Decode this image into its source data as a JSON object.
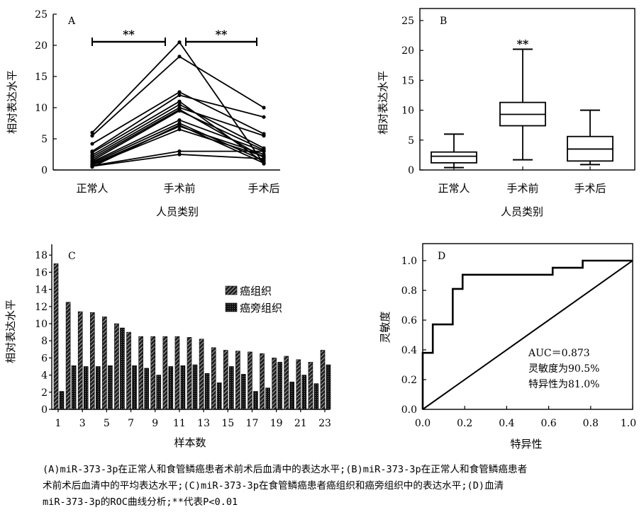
{
  "chart_data": [
    {
      "panel": "A",
      "type": "line",
      "ylabel": "相对表达水平",
      "xlabel": "人员类别",
      "categories": [
        "正常人",
        "手术前",
        "手术后"
      ],
      "y_ticks": [
        "0",
        "5",
        "10",
        "15",
        "20",
        "25"
      ],
      "ylim": [
        0,
        25
      ],
      "significance": [
        "**",
        "**"
      ],
      "normal_values": [
        6.0,
        5.5,
        4.2,
        3.0,
        2.8,
        2.4,
        2.1,
        1.8,
        1.5,
        1.3,
        1.1,
        0.9,
        0.8,
        0.7,
        0.6,
        0.5
      ],
      "pre_values": [
        20.5,
        18.2,
        12.5,
        12.0,
        11.0,
        10.5,
        10.0,
        9.7,
        9.5,
        8.0,
        7.5,
        7.0,
        6.5,
        3.0,
        2.5,
        7.2
      ],
      "post_values": [
        1.0,
        10.0,
        5.8,
        8.5,
        1.2,
        3.5,
        5.5,
        2.0,
        3.2,
        3.0,
        1.5,
        2.5,
        2.2,
        3.0,
        1.8,
        1.1
      ]
    },
    {
      "panel": "B",
      "type": "box",
      "ylabel": "相对表达水平",
      "xlabel": "人员类别",
      "categories": [
        "正常人",
        "手术前",
        "手术后"
      ],
      "y_ticks": [
        "0",
        "5",
        "10",
        "15",
        "20",
        "25"
      ],
      "ylim": [
        0,
        25
      ],
      "boxes": [
        {
          "min": 0.4,
          "q1": 1.2,
          "median": 2.3,
          "q3": 3.0,
          "max": 6.0
        },
        {
          "min": 1.7,
          "q1": 7.4,
          "median": 9.3,
          "q3": 11.3,
          "max": 20.2
        },
        {
          "min": 0.9,
          "q1": 1.5,
          "median": 3.5,
          "q3": 5.6,
          "max": 10.0
        }
      ],
      "significance": "**"
    },
    {
      "panel": "C",
      "type": "bar",
      "ylabel": "相对表达水平",
      "xlabel": "样本数",
      "categories": [
        "1",
        "2",
        "3",
        "4",
        "5",
        "6",
        "7",
        "8",
        "9",
        "10",
        "11",
        "12",
        "13",
        "14",
        "15",
        "16",
        "17",
        "18",
        "19",
        "20",
        "21",
        "22",
        "23"
      ],
      "x_ticks": [
        "1",
        "3",
        "5",
        "7",
        "9",
        "11",
        "13",
        "15",
        "17",
        "19",
        "21",
        "23"
      ],
      "y_ticks": [
        "0",
        "2",
        "4",
        "6",
        "8",
        "10",
        "12",
        "14",
        "16",
        "18"
      ],
      "ylim": [
        0,
        18
      ],
      "series": [
        {
          "name": "癌组织",
          "values": [
            17.0,
            12.5,
            11.4,
            11.3,
            10.8,
            10.0,
            9.0,
            8.5,
            8.5,
            8.5,
            8.5,
            8.4,
            8.2,
            7.2,
            6.9,
            6.8,
            6.7,
            6.5,
            6.0,
            6.2,
            5.8,
            5.5,
            6.9
          ]
        },
        {
          "name": "癌旁组织",
          "values": [
            2.1,
            5.1,
            5.0,
            5.0,
            5.1,
            9.5,
            5.1,
            4.8,
            4.0,
            5.0,
            5.1,
            5.2,
            4.2,
            3.1,
            5.0,
            4.1,
            2.1,
            2.5,
            5.5,
            3.2,
            4.0,
            3.0,
            5.2
          ]
        }
      ]
    },
    {
      "panel": "D",
      "type": "line",
      "xlabel": "特异性",
      "ylabel": "灵敏度",
      "x_ticks": [
        "0.0",
        "0.2",
        "0.4",
        "0.6",
        "0.8",
        "1.0"
      ],
      "y_ticks": [
        "0.0",
        "0.2",
        "0.4",
        "0.6",
        "0.8",
        "1.0"
      ],
      "xlim": [
        0,
        1
      ],
      "ylim": [
        0,
        1
      ],
      "roc_x": [
        0,
        0,
        0.048,
        0.048,
        0.143,
        0.143,
        0.19,
        0.19,
        0.619,
        0.619,
        0.762,
        0.762,
        1.0
      ],
      "roc_y": [
        0,
        0.38,
        0.38,
        0.571,
        0.571,
        0.81,
        0.81,
        0.905,
        0.905,
        0.952,
        0.952,
        1.0,
        1.0
      ],
      "diagonal": true,
      "annotations": [
        "AUC＝0.873",
        "灵敏度为90.5%",
        "特异性为81.0%"
      ]
    }
  ],
  "caption": {
    "line1": "(A)miR-373-3p在正常人和食管鳞癌患者术前术后血清中的表达水平;(B)miR-373-3p在正常人和食管鳞癌患者",
    "line2": "术前术后血清中的平均表达水平;(C)miR-373-3p在食管鳞癌患者癌组织和癌旁组织中的表达水平;(D)血清",
    "line3": "miR-373-3p的ROC曲线分析;**代表P<0.01"
  }
}
